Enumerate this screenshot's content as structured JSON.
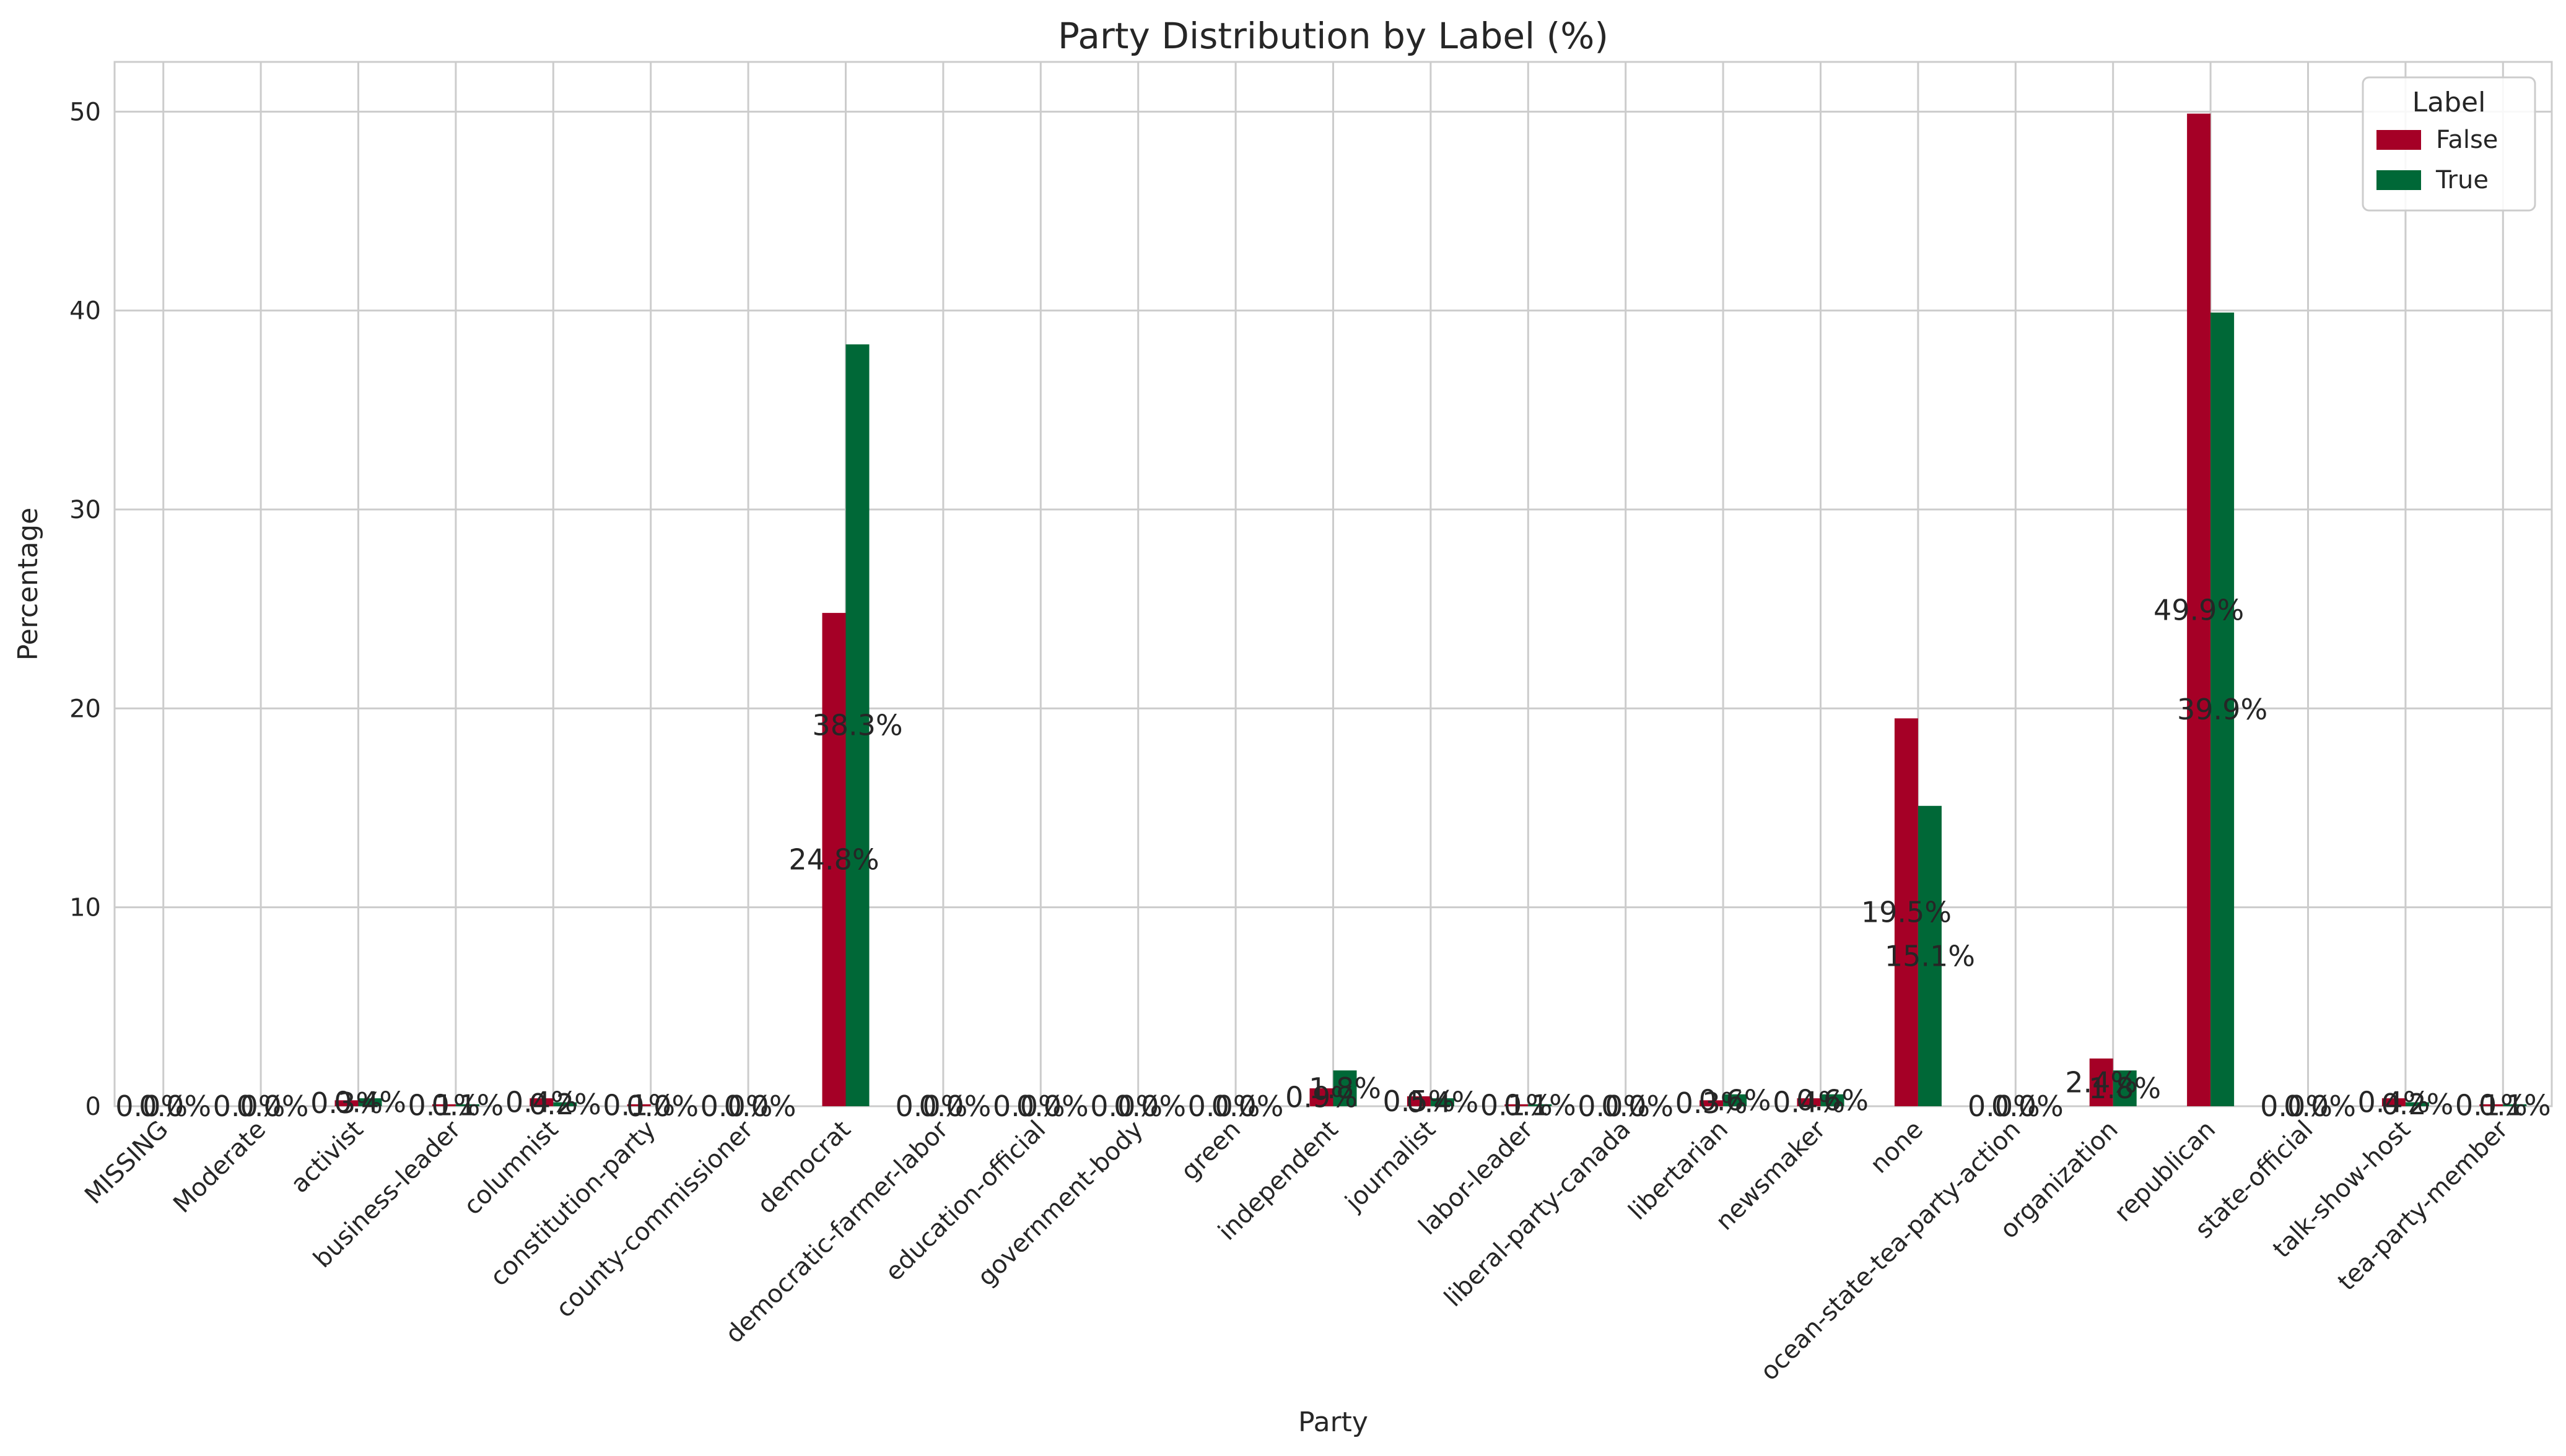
{
  "chart_data": {
    "type": "bar",
    "title": "Party Distribution by Label (%)",
    "xlabel": "Party",
    "ylabel": "Percentage",
    "ylim": [
      0,
      52.5
    ],
    "yticks": [
      0,
      10,
      20,
      30,
      40,
      50
    ],
    "grid": true,
    "legend": {
      "title": "Label",
      "placement": "top-right"
    },
    "categories": [
      "MISSING",
      "Moderate",
      "activist",
      "business-leader",
      "columnist",
      "constitution-party",
      "county-commissioner",
      "democrat",
      "democratic-farmer-labor",
      "education-official",
      "government-body",
      "green",
      "independent",
      "journalist",
      "labor-leader",
      "liberal-party-canada",
      "libertarian",
      "newsmaker",
      "none",
      "ocean-state-tea-party-action",
      "organization",
      "republican",
      "state-official",
      "talk-show-host",
      "tea-party-member"
    ],
    "series": [
      {
        "name": "False",
        "color": "#a50026",
        "values": [
          0.0,
          0.0,
          0.3,
          0.1,
          0.4,
          0.1,
          0.0,
          24.8,
          0.0,
          0.0,
          0.0,
          0.0,
          0.9,
          0.5,
          0.1,
          0.0,
          0.3,
          0.4,
          19.5,
          0.0,
          2.4,
          49.9,
          0.0,
          0.4,
          0.1
        ],
        "labels": [
          "0.0%",
          "0.0%",
          "0.3%",
          "0.1%",
          "0.4%",
          "0.1%",
          "0.0%",
          "24.8%",
          "0.0%",
          "0.0%",
          "0.0%",
          "0.0%",
          "0.9%",
          "0.5%",
          "0.1%",
          "0.0%",
          "0.3%",
          "0.4%",
          "19.5%",
          "0.0%",
          "2.4%",
          "49.9%",
          "0.0%",
          "0.4%",
          "0.1%"
        ]
      },
      {
        "name": "True",
        "color": "#006837",
        "values": [
          0.0,
          0.0,
          0.4,
          0.1,
          0.2,
          0.0,
          0.0,
          38.3,
          0.0,
          0.0,
          0.0,
          0.0,
          1.8,
          0.4,
          0.1,
          0.0,
          0.6,
          0.6,
          15.1,
          0.0,
          1.8,
          39.9,
          0.0,
          0.2,
          0.1
        ],
        "labels": [
          "0.0%",
          "0.0%",
          "0.4%",
          "0.1%",
          "0.2%",
          "0.0%",
          "0.0%",
          "38.3%",
          "0.0%",
          "0.0%",
          "0.0%",
          "0.0%",
          "1.8%",
          "0.4%",
          "0.1%",
          "0.0%",
          "0.6%",
          "0.6%",
          "15.1%",
          "0.0%",
          "1.8%",
          "39.9%",
          "0.0%",
          "0.2%",
          "0.1%"
        ]
      }
    ]
  }
}
